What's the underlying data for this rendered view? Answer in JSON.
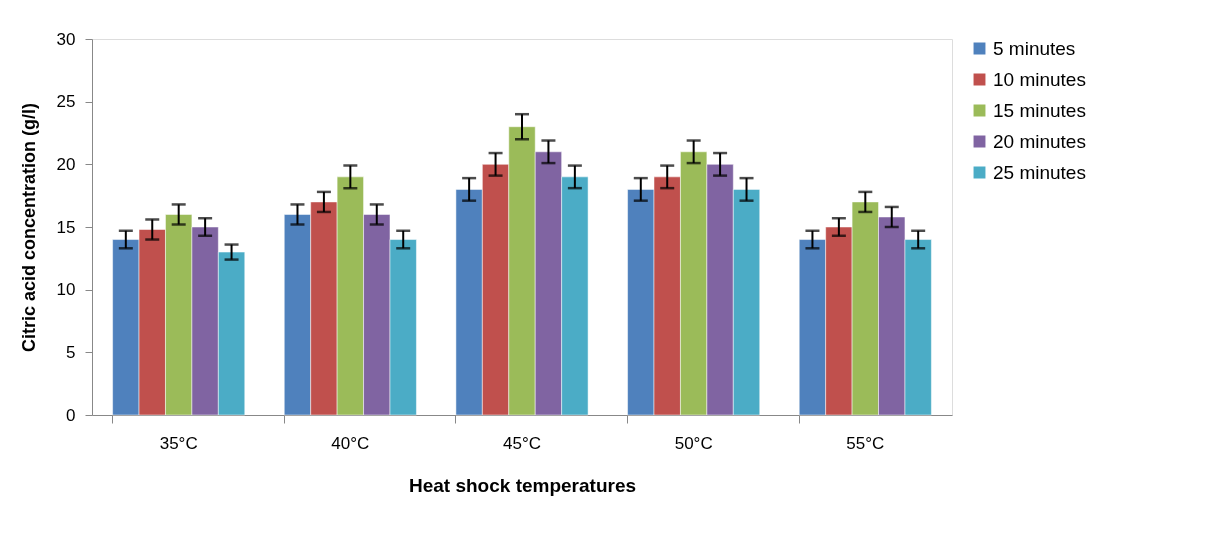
{
  "chart_data": {
    "type": "bar",
    "xlabel": "Heat shock temperatures",
    "ylabel": "Citric acid concentration (g/l)",
    "categories": [
      "35°C",
      "40°C",
      "45°C",
      "50°C",
      "55°C"
    ],
    "series": [
      {
        "name": "5 minutes",
        "color": "#4f81bd",
        "values": [
          14,
          16,
          18,
          18,
          14
        ],
        "errors": [
          0.7,
          0.8,
          0.9,
          0.9,
          0.7
        ]
      },
      {
        "name": "10 minutes",
        "color": "#c0504d",
        "values": [
          14.8,
          17,
          20,
          19,
          15
        ],
        "errors": [
          0.8,
          0.8,
          0.9,
          0.9,
          0.7
        ]
      },
      {
        "name": "15 minutes",
        "color": "#9bbb59",
        "values": [
          16,
          19,
          23,
          21,
          17
        ],
        "errors": [
          0.8,
          0.9,
          1.0,
          0.9,
          0.8
        ]
      },
      {
        "name": "20 minutes",
        "color": "#8064a2",
        "values": [
          15,
          16,
          21,
          20,
          15.8
        ],
        "errors": [
          0.7,
          0.8,
          0.9,
          0.9,
          0.8
        ]
      },
      {
        "name": "25 minutes",
        "color": "#4bacc6",
        "values": [
          13,
          14,
          19,
          18,
          14
        ],
        "errors": [
          0.6,
          0.7,
          0.9,
          0.9,
          0.7
        ]
      }
    ],
    "ylim": [
      0,
      30
    ],
    "yticks": [
      0,
      5,
      10,
      15,
      20,
      25,
      30
    ],
    "grid": false,
    "legend": "right"
  }
}
